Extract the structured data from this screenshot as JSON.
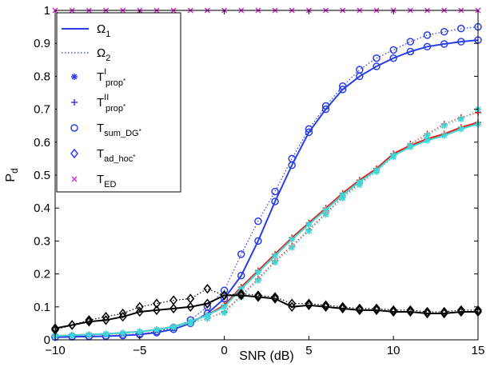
{
  "chart_data": {
    "type": "line",
    "title": "",
    "xlabel": "SNR (dB)",
    "ylabel": "P_d",
    "ylabel_main": "P",
    "ylabel_sub": "d",
    "xlim": [
      -10,
      15
    ],
    "ylim": [
      0,
      1
    ],
    "xticks": [
      -10,
      -5,
      0,
      5,
      10,
      15
    ],
    "yticks": [
      0,
      0.1,
      0.2,
      0.3,
      0.4,
      0.5,
      0.6,
      0.7,
      0.8,
      0.9,
      1
    ],
    "grid": false,
    "legend_position": "top-left",
    "x": [
      -10,
      -9,
      -8,
      -7,
      -6,
      -5,
      -4,
      -3,
      -2,
      -1,
      0,
      1,
      2,
      3,
      4,
      5,
      6,
      7,
      8,
      9,
      10,
      11,
      12,
      13,
      14,
      15
    ],
    "legend": [
      {
        "main": "Ω",
        "sub": "1",
        "sup": "",
        "style": "solid-line"
      },
      {
        "main": "Ω",
        "sub": "2",
        "sup": "",
        "style": "dotted-line"
      },
      {
        "main": "T",
        "sub": "prop",
        "sup": "I",
        "subsup": "*",
        "style": "asterisk"
      },
      {
        "main": "T",
        "sub": "prop",
        "sup": "II",
        "subsup": "*",
        "style": "plus"
      },
      {
        "main": "T",
        "sub": "sum_DG",
        "sup": "",
        "subsup": "*",
        "style": "circle"
      },
      {
        "main": "T",
        "sub": "ad_hoc",
        "sup": "",
        "subsup": "*",
        "style": "diamond"
      },
      {
        "main": "T",
        "sub": "ED",
        "sup": "",
        "subsup": "",
        "style": "x"
      }
    ],
    "series": [
      {
        "name": "T_sum_DG* Ω1",
        "color": "#2b3ee6",
        "line": "solid",
        "marker": "circle",
        "values": [
          0.008,
          0.009,
          0.01,
          0.011,
          0.013,
          0.016,
          0.022,
          0.032,
          0.05,
          0.08,
          0.125,
          0.195,
          0.3,
          0.42,
          0.53,
          0.63,
          0.7,
          0.76,
          0.8,
          0.83,
          0.855,
          0.875,
          0.89,
          0.898,
          0.905,
          0.91
        ]
      },
      {
        "name": "T_sum_DG* Ω2",
        "color": "#2b3ee6",
        "line": "dotted",
        "marker": "circle",
        "values": [
          0.009,
          0.01,
          0.011,
          0.012,
          0.015,
          0.018,
          0.025,
          0.037,
          0.06,
          0.1,
          0.15,
          0.26,
          0.36,
          0.45,
          0.55,
          0.64,
          0.71,
          0.77,
          0.82,
          0.855,
          0.88,
          0.905,
          0.925,
          0.935,
          0.945,
          0.95
        ]
      },
      {
        "name": "T_prop* Ω1",
        "color": "#e0201b",
        "line": "solid",
        "marker": "plus",
        "values": [
          0.012,
          0.014,
          0.016,
          0.018,
          0.021,
          0.025,
          0.031,
          0.04,
          0.055,
          0.075,
          0.105,
          0.16,
          0.21,
          0.26,
          0.31,
          0.355,
          0.4,
          0.445,
          0.485,
          0.52,
          0.565,
          0.59,
          0.61,
          0.625,
          0.645,
          0.66
        ]
      },
      {
        "name": "T_prop* Ω2",
        "color": "#e0201b",
        "line": "dotted",
        "marker": "plus",
        "values": [
          0.011,
          0.013,
          0.015,
          0.017,
          0.02,
          0.024,
          0.03,
          0.038,
          0.05,
          0.065,
          0.085,
          0.135,
          0.185,
          0.24,
          0.285,
          0.335,
          0.385,
          0.435,
          0.475,
          0.515,
          0.56,
          0.595,
          0.625,
          0.655,
          0.675,
          0.69
        ]
      },
      {
        "name": "T_prop^I* Ω1",
        "color": "#3fd6d6",
        "line": "solid",
        "marker": "asterisk",
        "values": [
          0.012,
          0.014,
          0.016,
          0.018,
          0.021,
          0.025,
          0.031,
          0.04,
          0.055,
          0.075,
          0.1,
          0.155,
          0.205,
          0.255,
          0.305,
          0.35,
          0.395,
          0.44,
          0.48,
          0.515,
          0.56,
          0.585,
          0.605,
          0.62,
          0.64,
          0.655
        ]
      },
      {
        "name": "T_prop^I* Ω2",
        "color": "#3fd6d6",
        "line": "dotted",
        "marker": "asterisk",
        "values": [
          0.011,
          0.013,
          0.015,
          0.017,
          0.02,
          0.024,
          0.03,
          0.038,
          0.05,
          0.065,
          0.082,
          0.13,
          0.18,
          0.235,
          0.28,
          0.33,
          0.38,
          0.43,
          0.47,
          0.51,
          0.555,
          0.59,
          0.62,
          0.65,
          0.67,
          0.7
        ]
      },
      {
        "name": "T_ad_hoc* Ω1",
        "color": "#000000",
        "line": "solid",
        "marker": "diamond",
        "values": [
          0.035,
          0.045,
          0.055,
          0.06,
          0.07,
          0.085,
          0.09,
          0.095,
          0.1,
          0.11,
          0.135,
          0.135,
          0.13,
          0.125,
          0.1,
          0.105,
          0.1,
          0.095,
          0.09,
          0.09,
          0.085,
          0.085,
          0.08,
          0.08,
          0.085,
          0.085
        ]
      },
      {
        "name": "T_ad_hoc* Ω2",
        "color": "#000000",
        "line": "dotted",
        "marker": "diamond",
        "values": [
          0.03,
          0.045,
          0.06,
          0.07,
          0.08,
          0.1,
          0.11,
          0.12,
          0.125,
          0.155,
          0.135,
          0.14,
          0.135,
          0.13,
          0.11,
          0.11,
          0.105,
          0.1,
          0.095,
          0.095,
          0.09,
          0.09,
          0.085,
          0.085,
          0.09,
          0.09
        ]
      },
      {
        "name": "T_ED",
        "color": "#d62fd6",
        "line": "dotted",
        "marker": "x",
        "values": [
          1,
          1,
          1,
          1,
          1,
          1,
          1,
          1,
          1,
          1,
          1,
          1,
          1,
          1,
          1,
          1,
          1,
          1,
          1,
          1,
          1,
          1,
          1,
          1,
          1,
          1
        ]
      }
    ]
  }
}
